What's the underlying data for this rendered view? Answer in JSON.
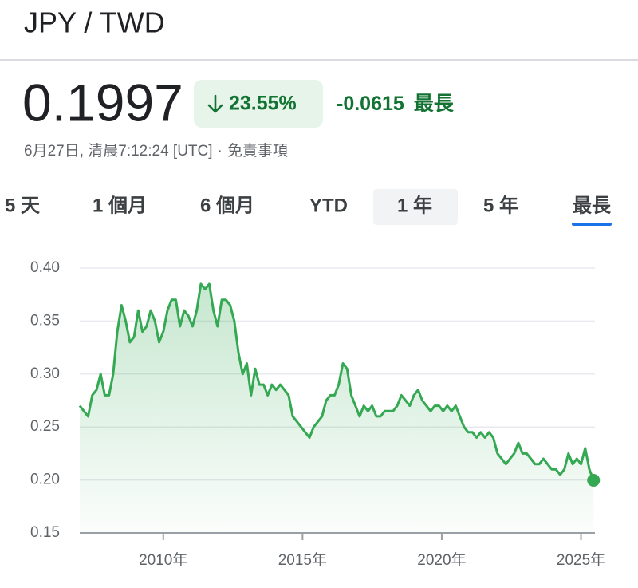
{
  "header": {
    "title": "JPY / TWD",
    "price": "0.1997",
    "change_percent": "23.55%",
    "change_value": "-0.0615",
    "period": "最長",
    "timestamp": "6月27日, 清晨7:12:24 [UTC]",
    "separator": "·",
    "disclaimer": "免責事項"
  },
  "tabs": [
    "5 天",
    "1 個月",
    "6 個月",
    "YTD",
    "1 年",
    "5 年",
    "最長"
  ],
  "selected_tab": 6,
  "chart_data": {
    "type": "line",
    "color": "#34a853",
    "x": [
      2007,
      2007.15,
      2007.3,
      2007.45,
      2007.6,
      2007.75,
      2007.9,
      2008.05,
      2008.2,
      2008.35,
      2008.5,
      2008.65,
      2008.8,
      2008.95,
      2009.1,
      2009.25,
      2009.4,
      2009.55,
      2009.7,
      2009.85,
      2010,
      2010.15,
      2010.3,
      2010.45,
      2010.6,
      2010.75,
      2010.9,
      2011.05,
      2011.2,
      2011.35,
      2011.5,
      2011.65,
      2011.8,
      2011.95,
      2012.1,
      2012.25,
      2012.4,
      2012.55,
      2012.7,
      2012.85,
      2013,
      2013.15,
      2013.3,
      2013.45,
      2013.6,
      2013.75,
      2013.9,
      2014.05,
      2014.2,
      2014.35,
      2014.5,
      2014.65,
      2014.8,
      2014.95,
      2015.1,
      2015.25,
      2015.4,
      2015.55,
      2015.7,
      2015.85,
      2016,
      2016.15,
      2016.3,
      2016.45,
      2016.6,
      2016.75,
      2016.9,
      2017.05,
      2017.2,
      2017.35,
      2017.5,
      2017.65,
      2017.8,
      2017.95,
      2018.1,
      2018.25,
      2018.4,
      2018.55,
      2018.7,
      2018.85,
      2019,
      2019.15,
      2019.3,
      2019.45,
      2019.6,
      2019.75,
      2019.9,
      2020.05,
      2020.2,
      2020.35,
      2020.5,
      2020.65,
      2020.8,
      2020.95,
      2021.1,
      2021.25,
      2021.4,
      2021.55,
      2021.7,
      2021.85,
      2022,
      2022.15,
      2022.3,
      2022.45,
      2022.6,
      2022.75,
      2022.9,
      2023.05,
      2023.2,
      2023.35,
      2023.5,
      2023.65,
      2023.8,
      2023.95,
      2024.1,
      2024.25,
      2024.4,
      2024.55,
      2024.7,
      2024.85,
      2025,
      2025.15,
      2025.3,
      2025.45
    ],
    "values": [
      0.27,
      0.265,
      0.26,
      0.28,
      0.285,
      0.3,
      0.28,
      0.28,
      0.3,
      0.34,
      0.365,
      0.35,
      0.33,
      0.335,
      0.36,
      0.34,
      0.345,
      0.36,
      0.35,
      0.33,
      0.34,
      0.36,
      0.37,
      0.37,
      0.345,
      0.36,
      0.355,
      0.345,
      0.36,
      0.385,
      0.38,
      0.385,
      0.36,
      0.345,
      0.37,
      0.37,
      0.365,
      0.35,
      0.32,
      0.3,
      0.31,
      0.28,
      0.305,
      0.29,
      0.29,
      0.28,
      0.29,
      0.285,
      0.29,
      0.285,
      0.28,
      0.26,
      0.255,
      0.25,
      0.245,
      0.24,
      0.25,
      0.255,
      0.26,
      0.275,
      0.28,
      0.28,
      0.29,
      0.31,
      0.305,
      0.28,
      0.27,
      0.26,
      0.27,
      0.265,
      0.27,
      0.26,
      0.26,
      0.265,
      0.265,
      0.265,
      0.27,
      0.28,
      0.275,
      0.27,
      0.28,
      0.285,
      0.275,
      0.27,
      0.265,
      0.27,
      0.27,
      0.265,
      0.27,
      0.265,
      0.27,
      0.26,
      0.25,
      0.245,
      0.245,
      0.24,
      0.245,
      0.24,
      0.245,
      0.24,
      0.225,
      0.22,
      0.215,
      0.22,
      0.225,
      0.235,
      0.225,
      0.225,
      0.22,
      0.215,
      0.215,
      0.22,
      0.215,
      0.21,
      0.21,
      0.205,
      0.21,
      0.225,
      0.215,
      0.22,
      0.215,
      0.23,
      0.21,
      0.1997
    ],
    "xlim": [
      2007,
      2025.5
    ],
    "ylim": [
      0.15,
      0.4
    ],
    "xticks": [
      {
        "value": 2010,
        "label": "2010年"
      },
      {
        "value": 2015,
        "label": "2015年"
      },
      {
        "value": 2020,
        "label": "2020年"
      },
      {
        "value": 2025,
        "label": "2025年"
      }
    ],
    "yticks": [
      0.15,
      {
        "value": 0.2,
        "label": "0.20"
      },
      0.25,
      {
        "value": 0.3,
        "label": "0.30"
      },
      0.35,
      {
        "value": 0.4,
        "label": "0.40"
      }
    ],
    "grid": true,
    "end_marker": true
  }
}
